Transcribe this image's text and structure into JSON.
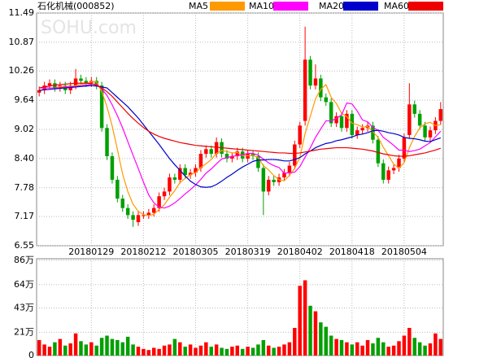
{
  "chart_data": {
    "type": "candlestick",
    "title": "石化机械(000852)",
    "watermark": "SOHU.com",
    "categories": [
      null,
      null,
      null,
      null,
      null,
      null,
      null,
      null,
      null,
      null,
      "20180129",
      null,
      null,
      null,
      null,
      null,
      null,
      null,
      null,
      null,
      "20180212",
      null,
      null,
      null,
      null,
      null,
      null,
      null,
      null,
      null,
      "20180305",
      null,
      null,
      null,
      null,
      null,
      null,
      null,
      null,
      null,
      "20180319",
      null,
      null,
      null,
      null,
      null,
      null,
      null,
      null,
      null,
      "20180402",
      null,
      null,
      null,
      null,
      null,
      null,
      null,
      null,
      null,
      "20180418",
      null,
      null,
      null,
      null,
      null,
      null,
      null,
      null,
      null,
      "20180504",
      null,
      null,
      null,
      null,
      null,
      null,
      null
    ],
    "open": [
      9.8,
      9.85,
      9.95,
      10.0,
      9.9,
      9.95,
      9.85,
      9.95,
      10.1,
      10.05,
      10.0,
      10.05,
      9.95,
      9.05,
      8.45,
      7.95,
      7.55,
      7.35,
      7.2,
      7.05,
      7.2,
      7.2,
      7.25,
      7.35,
      7.6,
      7.7,
      8.0,
      7.95,
      8.2,
      8.05,
      8.1,
      8.2,
      8.5,
      8.6,
      8.5,
      8.75,
      8.5,
      8.4,
      8.45,
      8.55,
      8.4,
      8.5,
      8.45,
      8.2,
      7.7,
      7.95,
      7.9,
      8.0,
      8.1,
      8.25,
      8.7,
      9.2,
      10.5,
      9.95,
      10.1,
      9.7,
      9.6,
      9.15,
      9.3,
      9.05,
      9.35,
      8.9,
      9.0,
      9.05,
      9.1,
      8.8,
      8.3,
      7.95,
      8.15,
      8.2,
      8.4,
      8.9,
      9.55,
      9.35,
      9.1,
      8.85,
      9.0,
      9.2
    ],
    "high": [
      9.93,
      10.03,
      10.08,
      10.08,
      10.03,
      10.03,
      10.03,
      10.3,
      10.18,
      10.13,
      10.13,
      10.13,
      10.03,
      9.13,
      8.53,
      8.03,
      7.63,
      7.43,
      7.28,
      7.28,
      7.28,
      7.33,
      7.43,
      7.68,
      7.78,
      8.08,
      8.08,
      8.28,
      8.28,
      8.18,
      8.28,
      8.58,
      8.68,
      8.68,
      8.85,
      8.83,
      8.58,
      8.53,
      8.63,
      8.63,
      8.58,
      8.58,
      8.53,
      8.28,
      8.03,
      8.03,
      8.08,
      8.18,
      8.33,
      8.78,
      9.18,
      11.2,
      10.58,
      10.4,
      10.18,
      9.78,
      9.68,
      9.38,
      9.38,
      9.43,
      9.43,
      9.08,
      9.13,
      9.18,
      9.18,
      8.88,
      8.38,
      8.23,
      8.28,
      8.48,
      8.93,
      10.0,
      9.63,
      9.43,
      9.18,
      9.08,
      9.28,
      9.6
    ],
    "low": [
      9.72,
      9.77,
      9.87,
      9.82,
      9.82,
      9.77,
      9.77,
      9.87,
      9.97,
      9.92,
      9.92,
      9.87,
      8.97,
      8.37,
      7.87,
      7.47,
      7.27,
      7.12,
      6.95,
      6.97,
      7.12,
      7.12,
      7.17,
      7.27,
      7.52,
      7.62,
      7.87,
      7.87,
      7.97,
      7.97,
      8.02,
      8.12,
      8.42,
      8.42,
      8.42,
      8.42,
      8.32,
      8.32,
      8.37,
      8.32,
      8.32,
      8.37,
      8.12,
      7.2,
      7.62,
      7.82,
      7.82,
      7.92,
      8.02,
      8.17,
      8.62,
      9.1,
      9.87,
      9.87,
      9.62,
      9.52,
      9.07,
      9.07,
      8.97,
      8.97,
      8.82,
      8.82,
      8.92,
      8.97,
      8.72,
      8.22,
      7.87,
      7.87,
      8.07,
      8.12,
      8.32,
      8.82,
      9.27,
      9.02,
      8.77,
      8.77,
      8.92,
      9.12
    ],
    "close": [
      9.85,
      9.95,
      10.0,
      9.9,
      9.95,
      9.85,
      9.95,
      10.1,
      10.05,
      10.0,
      10.05,
      9.95,
      9.05,
      8.45,
      7.95,
      7.55,
      7.35,
      7.2,
      7.1,
      7.2,
      7.2,
      7.25,
      7.35,
      7.6,
      7.7,
      8.0,
      7.95,
      8.2,
      8.05,
      8.1,
      8.2,
      8.5,
      8.6,
      8.5,
      8.75,
      8.5,
      8.4,
      8.45,
      8.55,
      8.4,
      8.5,
      8.45,
      8.2,
      7.7,
      7.95,
      7.9,
      8.0,
      8.1,
      8.25,
      8.7,
      9.1,
      10.5,
      9.95,
      10.1,
      9.7,
      9.6,
      9.15,
      9.3,
      9.05,
      9.35,
      8.9,
      9.0,
      9.05,
      9.1,
      8.8,
      8.3,
      7.95,
      8.15,
      8.2,
      8.4,
      8.85,
      9.55,
      9.35,
      9.1,
      8.85,
      9.0,
      9.2,
      9.45
    ],
    "volume": [
      14,
      10,
      8,
      12,
      15,
      9,
      11,
      20,
      13,
      10,
      12,
      9,
      16,
      18,
      15,
      14,
      12,
      17,
      10,
      8,
      6,
      5,
      7,
      6,
      9,
      10,
      15,
      12,
      8,
      10,
      7,
      9,
      12,
      8,
      10,
      7,
      6,
      8,
      9,
      6,
      8,
      7,
      10,
      14,
      9,
      7,
      8,
      10,
      12,
      25,
      63,
      68,
      45,
      40,
      30,
      26,
      18,
      15,
      14,
      12,
      10,
      12,
      9,
      14,
      11,
      16,
      12,
      8,
      9,
      13,
      18,
      25,
      16,
      12,
      9,
      11,
      20,
      15
    ],
    "series": [
      {
        "name": "MA5",
        "color": "#ff9900",
        "values": [
          9.9,
          9.9,
          9.9,
          9.9,
          9.93,
          9.93,
          9.93,
          9.95,
          9.98,
          9.99,
          10.03,
          10.03,
          9.82,
          9.5,
          9.09,
          8.59,
          8.07,
          7.7,
          7.43,
          7.28,
          7.21,
          7.19,
          7.22,
          7.32,
          7.42,
          7.58,
          7.72,
          7.89,
          7.98,
          8.06,
          8.1,
          8.21,
          8.29,
          8.38,
          8.51,
          8.57,
          8.55,
          8.52,
          8.53,
          8.46,
          8.46,
          8.47,
          8.42,
          8.25,
          8.16,
          8.04,
          7.95,
          7.93,
          8.04,
          8.19,
          8.43,
          8.93,
          9.3,
          9.67,
          9.87,
          9.97,
          9.7,
          9.57,
          9.36,
          9.29,
          9.15,
          9.12,
          9.07,
          9.08,
          8.97,
          8.85,
          8.64,
          8.46,
          8.28,
          8.2,
          8.31,
          8.63,
          8.87,
          9.05,
          9.14,
          9.17,
          9.1,
          9.12
        ]
      },
      {
        "name": "MA10",
        "color": "#ff00ff",
        "values": [
          9.9,
          9.9,
          9.9,
          9.9,
          9.9,
          9.92,
          9.92,
          9.93,
          9.95,
          9.96,
          9.98,
          9.98,
          9.88,
          9.74,
          9.54,
          9.31,
          9.05,
          8.76,
          8.47,
          8.19,
          7.9,
          7.63,
          7.46,
          7.37,
          7.35,
          7.39,
          7.46,
          7.55,
          7.65,
          7.74,
          7.84,
          7.96,
          8.09,
          8.18,
          8.29,
          8.39,
          8.42,
          8.45,
          8.46,
          8.48,
          8.51,
          8.51,
          8.47,
          8.39,
          8.31,
          8.25,
          8.21,
          8.09,
          8.1,
          8.11,
          8.23,
          8.43,
          8.63,
          8.85,
          9.03,
          9.2,
          9.2,
          9.25,
          9.33,
          9.58,
          9.56,
          9.41,
          9.22,
          9.18,
          9.06,
          9.0,
          8.85,
          8.77,
          8.68,
          8.58,
          8.58,
          8.55,
          8.57,
          8.6,
          8.67,
          8.74,
          8.86,
          8.98
        ]
      },
      {
        "name": "MA20",
        "color": "#0000cc",
        "values": [
          9.85,
          9.86,
          9.87,
          9.88,
          9.89,
          9.9,
          9.91,
          9.92,
          9.93,
          9.94,
          9.95,
          9.94,
          9.92,
          9.9,
          9.8,
          9.7,
          9.6,
          9.5,
          9.38,
          9.26,
          9.12,
          8.98,
          8.84,
          8.7,
          8.55,
          8.4,
          8.27,
          8.15,
          8.03,
          7.92,
          7.85,
          7.8,
          7.79,
          7.8,
          7.85,
          7.92,
          8.0,
          8.07,
          8.15,
          8.22,
          8.28,
          8.34,
          8.37,
          8.37,
          8.38,
          8.38,
          8.37,
          8.35,
          8.35,
          8.38,
          8.42,
          8.5,
          8.56,
          8.63,
          8.68,
          8.72,
          8.74,
          8.78,
          8.8,
          8.83,
          8.86,
          8.9,
          8.92,
          8.95,
          8.99,
          9.0,
          8.98,
          8.95,
          8.93,
          8.9,
          8.85,
          8.83,
          8.82,
          8.8,
          8.77,
          8.76,
          8.8,
          8.84
        ]
      },
      {
        "name": "MA60",
        "color": "#ee0000",
        "values": [
          9.9,
          9.92,
          9.94,
          9.96,
          9.97,
          9.98,
          9.99,
          10.0,
          10.0,
          10.0,
          9.99,
          9.96,
          9.9,
          9.82,
          9.72,
          9.6,
          9.48,
          9.36,
          9.25,
          9.15,
          9.06,
          8.98,
          8.92,
          8.87,
          8.83,
          8.8,
          8.77,
          8.74,
          8.72,
          8.7,
          8.68,
          8.67,
          8.66,
          8.65,
          8.64,
          8.63,
          8.62,
          8.61,
          8.6,
          8.59,
          8.58,
          8.57,
          8.56,
          8.55,
          8.54,
          8.53,
          8.52,
          8.52,
          8.51,
          8.51,
          8.52,
          8.54,
          8.56,
          8.58,
          8.6,
          8.61,
          8.62,
          8.63,
          8.63,
          8.63,
          8.62,
          8.61,
          8.6,
          8.58,
          8.56,
          8.53,
          8.5,
          8.48,
          8.46,
          8.45,
          8.45,
          8.46,
          8.48,
          8.5,
          8.52,
          8.55,
          8.58,
          8.62
        ]
      }
    ],
    "ylim": [
      6.55,
      11.49
    ],
    "yticks": [
      6.55,
      7.17,
      7.78,
      {
        "value": 8.4,
        "label": "8.40"
      },
      9.02,
      9.64,
      10.26,
      10.87,
      11.49
    ],
    "vlim": [
      0,
      86
    ],
    "vticks": [
      0,
      {
        "value": 21,
        "label": "21万"
      },
      {
        "value": 43,
        "label": "43万"
      },
      {
        "value": 64,
        "label": "64万"
      },
      {
        "value": 86,
        "label": "86万"
      }
    ],
    "up_color": "#ff0000",
    "down_color": "#00a000",
    "grid": true
  }
}
